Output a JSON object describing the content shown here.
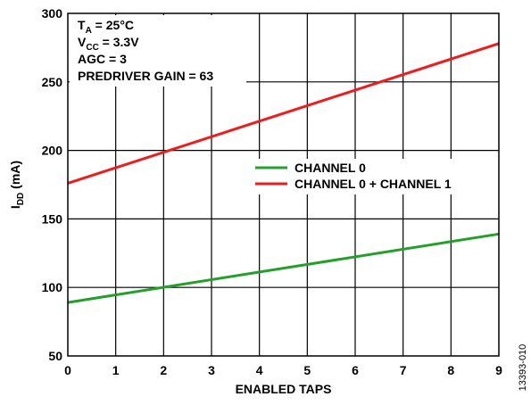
{
  "chart_data": {
    "type": "line",
    "xlabel": "ENABLED TAPS",
    "ylabel_main": "I",
    "ylabel_sub": "DD",
    "ylabel_unit": " (mA)",
    "xlim": [
      0,
      9
    ],
    "ylim": [
      50,
      300
    ],
    "x_ticks": [
      "0",
      "1",
      "2",
      "3",
      "4",
      "5",
      "6",
      "7",
      "8",
      "9"
    ],
    "y_ticks": [
      "50",
      "100",
      "150",
      "200",
      "250",
      "300"
    ],
    "grid": true,
    "legend_position": "right-middle",
    "series": [
      {
        "name": "CHANNEL 0",
        "color": "#22a02a",
        "x": [
          0,
          9
        ],
        "y": [
          89,
          139
        ]
      },
      {
        "name": "CHANNEL 0 + CHANNEL 1",
        "color": "#ee1c1c",
        "x": [
          0,
          9
        ],
        "y": [
          176,
          278
        ]
      }
    ],
    "conditions": [
      {
        "main": "T",
        "sub": "A",
        "rest": " = 25°C"
      },
      {
        "main": "V",
        "sub": "CC",
        "rest": " = 3.3V"
      },
      {
        "main": "AGC = 3",
        "sub": "",
        "rest": ""
      },
      {
        "main": "PREDRIVER GAIN = 63",
        "sub": "",
        "rest": ""
      }
    ]
  },
  "figure_id": "13393-010"
}
